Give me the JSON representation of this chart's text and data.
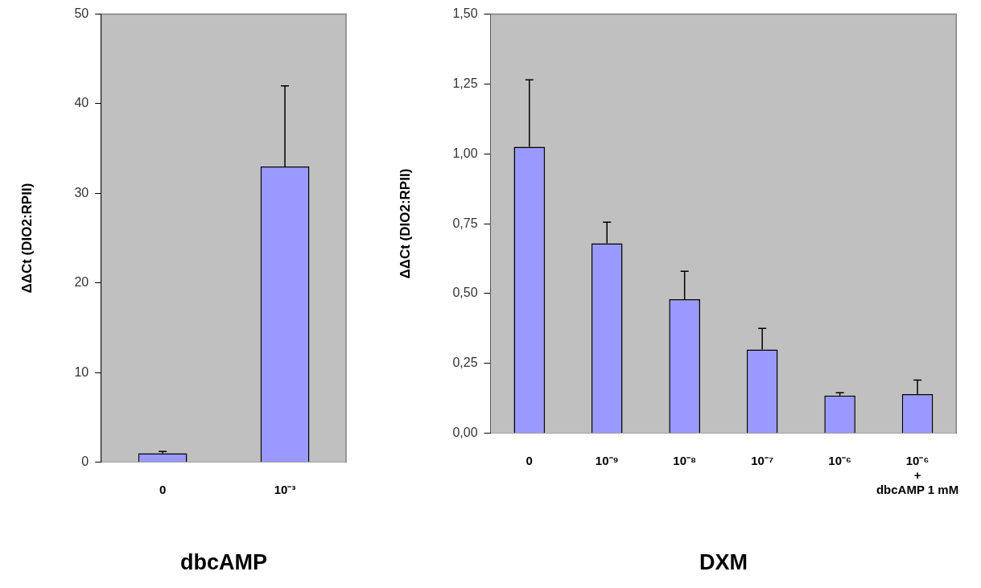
{
  "chart_data": [
    {
      "type": "bar",
      "xlabel": "dbcAMP",
      "ylabel": "ΔΔCt (DIO2:RPII)",
      "categories": [
        "0",
        "10⁻³"
      ],
      "values": [
        1.0,
        33
      ],
      "color": "#9999ff",
      "errors": [
        [
          1.0,
          1.2
        ],
        [
          33,
          42
        ]
      ],
      "ylim": [
        0,
        50
      ],
      "yticks": [
        0,
        10,
        20,
        30,
        40,
        50
      ],
      "grid": false,
      "legend": false
    },
    {
      "type": "bar",
      "xlabel": "DXM",
      "ylabel": "ΔΔCt (DIO2:RPII)",
      "categories": [
        "0",
        "10⁻⁹",
        "10⁻⁸",
        "10⁻⁷",
        "10⁻⁶",
        "10⁻⁶\n+\ndbcAMP 1 mM"
      ],
      "values": [
        1.025,
        0.68,
        0.48,
        0.3,
        0.135,
        0.14
      ],
      "color": "#9999ff",
      "errors": [
        [
          1.025,
          1.265
        ],
        [
          0.68,
          0.755
        ],
        [
          0.48,
          0.58
        ],
        [
          0.3,
          0.375
        ],
        [
          0.135,
          0.145
        ],
        [
          0.14,
          0.19
        ]
      ],
      "ylim": [
        0,
        1.5
      ],
      "yticks": [
        {
          "value": 0,
          "label": "0,00"
        },
        {
          "value": 0.25,
          "label": "0,25"
        },
        {
          "value": 0.5,
          "label": "0,50"
        },
        {
          "value": 0.75,
          "label": "0,75"
        },
        {
          "value": 1.0,
          "label": "1,00"
        },
        {
          "value": 1.25,
          "label": "1,25"
        },
        {
          "value": 1.5,
          "label": "1,50"
        }
      ],
      "grid": false,
      "legend": false
    }
  ]
}
